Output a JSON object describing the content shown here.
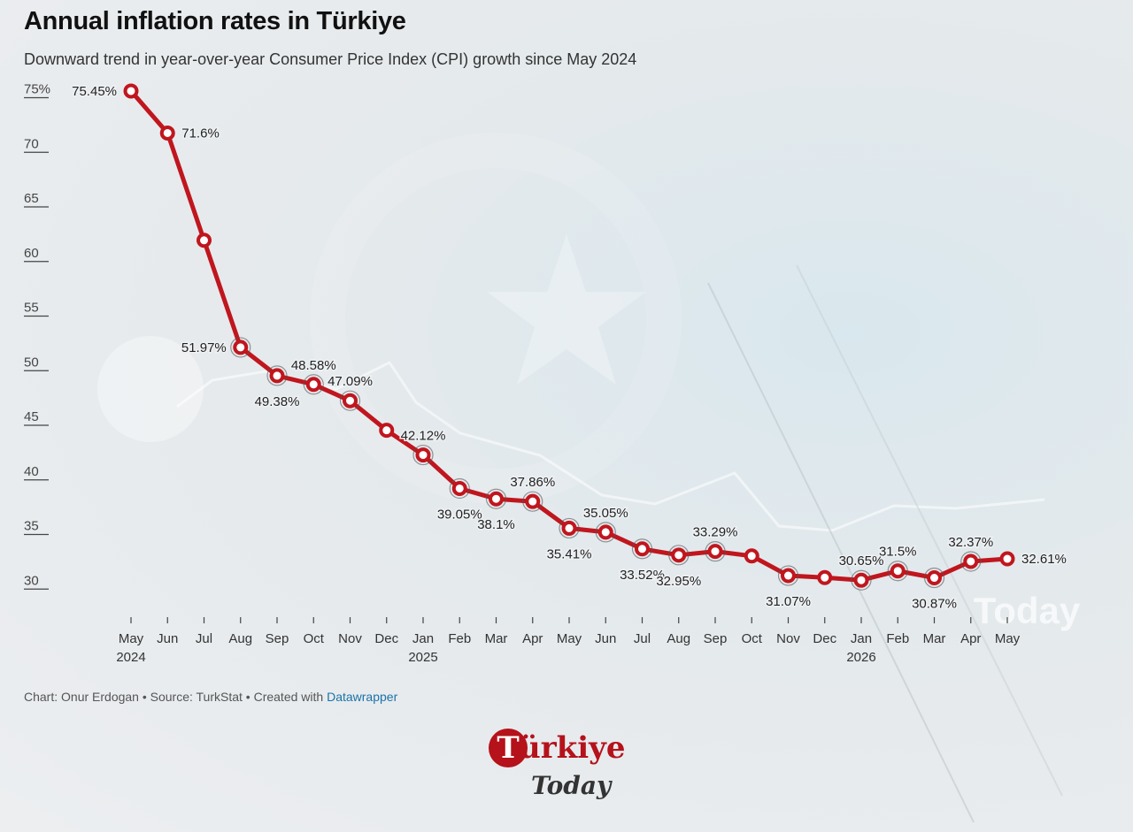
{
  "header": {
    "title": "Annual inflation rates in Türkiye",
    "subtitle": "Downward trend in year-over-year Consumer Price Index (CPI) growth since May 2024"
  },
  "footer": {
    "prefix": "Chart: Onur Erdogan • Source: TurkStat • Created with ",
    "link": "Datawrapper"
  },
  "logo": {
    "initial": "T",
    "word": "ürkiye",
    "sub": "Today"
  },
  "colors": {
    "line": "#c0161e",
    "marker_fill": "#ffffff",
    "axis": "#444444"
  },
  "chart_data": {
    "type": "line",
    "title": "Annual inflation rates in Türkiye",
    "subtitle": "Downward trend in year-over-year Consumer Price Index (CPI) growth since May 2024",
    "ylim": [
      28,
      76
    ],
    "y_ticks": [
      {
        "value": 75,
        "label": "75%"
      },
      {
        "value": 70,
        "label": "70"
      },
      {
        "value": 65,
        "label": "65"
      },
      {
        "value": 60,
        "label": "60"
      },
      {
        "value": 55,
        "label": "55"
      },
      {
        "value": 50,
        "label": "50"
      },
      {
        "value": 45,
        "label": "45"
      },
      {
        "value": 40,
        "label": "40"
      },
      {
        "value": 35,
        "label": "35"
      },
      {
        "value": 30,
        "label": "30"
      }
    ],
    "grid": false,
    "series": [
      {
        "color": "#c0161e",
        "points": [
          {
            "x": "May",
            "year": "2024",
            "y": 75.45,
            "label": "75.45%",
            "pos": "left"
          },
          {
            "x": "Jun",
            "year": "",
            "y": 71.6,
            "label": "71.6%",
            "pos": "right"
          },
          {
            "x": "Jul",
            "year": "",
            "y": 61.78,
            "label": "",
            "pos": ""
          },
          {
            "x": "Aug",
            "year": "",
            "y": 51.97,
            "label": "51.97%",
            "pos": "left"
          },
          {
            "x": "Sep",
            "year": "",
            "y": 49.38,
            "label": "49.38%",
            "pos": "below"
          },
          {
            "x": "Oct",
            "year": "",
            "y": 48.58,
            "label": "48.58%",
            "pos": "above"
          },
          {
            "x": "Nov",
            "year": "",
            "y": 47.09,
            "label": "47.09%",
            "pos": "above"
          },
          {
            "x": "Dec",
            "year": "",
            "y": 44.38,
            "label": "",
            "pos": ""
          },
          {
            "x": "Jan",
            "year": "2025",
            "y": 42.12,
            "label": "42.12%",
            "pos": "above"
          },
          {
            "x": "Feb",
            "year": "",
            "y": 39.05,
            "label": "39.05%",
            "pos": "below"
          },
          {
            "x": "Mar",
            "year": "",
            "y": 38.1,
            "label": "38.1%",
            "pos": "below"
          },
          {
            "x": "Apr",
            "year": "",
            "y": 37.86,
            "label": "37.86%",
            "pos": "above"
          },
          {
            "x": "May",
            "year": "",
            "y": 35.41,
            "label": "35.41%",
            "pos": "below"
          },
          {
            "x": "Jun",
            "year": "",
            "y": 35.05,
            "label": "35.05%",
            "pos": "above"
          },
          {
            "x": "Jul",
            "year": "",
            "y": 33.52,
            "label": "33.52%",
            "pos": "below"
          },
          {
            "x": "Aug",
            "year": "",
            "y": 32.95,
            "label": "32.95%",
            "pos": "below"
          },
          {
            "x": "Sep",
            "year": "",
            "y": 33.29,
            "label": "33.29%",
            "pos": "above"
          },
          {
            "x": "Oct",
            "year": "",
            "y": 32.87,
            "label": "",
            "pos": ""
          },
          {
            "x": "Nov",
            "year": "",
            "y": 31.07,
            "label": "31.07%",
            "pos": "below"
          },
          {
            "x": "Dec",
            "year": "",
            "y": 30.89,
            "label": "",
            "pos": ""
          },
          {
            "x": "Jan",
            "year": "2026",
            "y": 30.65,
            "label": "30.65%",
            "pos": "above"
          },
          {
            "x": "Feb",
            "year": "",
            "y": 31.5,
            "label": "31.5%",
            "pos": "above"
          },
          {
            "x": "Mar",
            "year": "",
            "y": 30.87,
            "label": "30.87%",
            "pos": "below"
          },
          {
            "x": "Apr",
            "year": "",
            "y": 32.37,
            "label": "32.37%",
            "pos": "above"
          },
          {
            "x": "May",
            "year": "",
            "y": 32.61,
            "label": "32.61%",
            "pos": "right"
          }
        ]
      }
    ]
  }
}
